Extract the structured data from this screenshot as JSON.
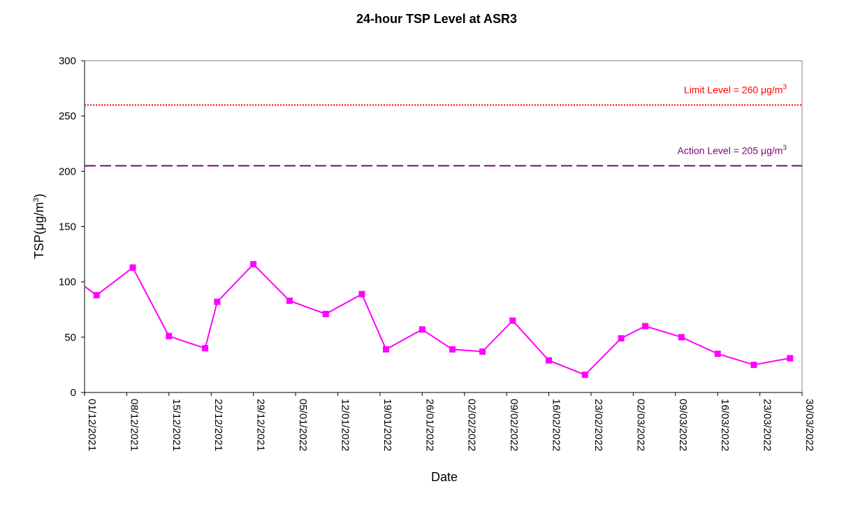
{
  "chart_data": {
    "type": "line",
    "title": "24-hour TSP Level at ASR3",
    "xlabel": "Date",
    "ylabel_main": "TSP(",
    "ylabel_unit": "μg/m",
    "ylabel_sup": "3",
    "ylabel_close": ")",
    "ylim": [
      0,
      300
    ],
    "yticks": [
      "0",
      "50",
      "100",
      "150",
      "200",
      "250",
      "300"
    ],
    "xlim": [
      "2021-12-01",
      "2022-03-30"
    ],
    "xticks": [
      "01/12/2021",
      "08/12/2021",
      "15/12/2021",
      "22/12/2021",
      "29/12/2021",
      "05/01/2022",
      "12/01/2022",
      "19/01/2022",
      "26/01/2022",
      "02/02/2022",
      "09/02/2022",
      "16/02/2022",
      "23/02/2022",
      "02/03/2022",
      "09/03/2022",
      "16/03/2022",
      "23/03/2022",
      "30/03/2022"
    ],
    "grid": false,
    "series": [
      {
        "color": "#ff00ff",
        "x": [
          "2021-12-01",
          "2021-12-03",
          "2021-12-09",
          "2021-12-15",
          "2021-12-21",
          "2021-12-23",
          "2021-12-29",
          "2022-01-04",
          "2022-01-10",
          "2022-01-16",
          "2022-01-20",
          "2022-01-26",
          "2022-01-31",
          "2022-02-05",
          "2022-02-10",
          "2022-02-16",
          "2022-02-22",
          "2022-02-28",
          "2022-03-04",
          "2022-03-10",
          "2022-03-16",
          "2022-03-22",
          "2022-03-28"
        ],
        "y": [
          96,
          88,
          113,
          51,
          40,
          82,
          116,
          83,
          71,
          89,
          39,
          57,
          39,
          37,
          65,
          29,
          16,
          49,
          60,
          50,
          35,
          25,
          31
        ]
      }
    ],
    "reference_lines": [
      {
        "value": 260,
        "color": "#ff0000",
        "style": "dotted",
        "label": "Limit Level = 260 ",
        "unit": "μg/m",
        "sup": "3"
      },
      {
        "value": 205,
        "color": "#800080",
        "style": "dashed",
        "label": "Action Level = 205 ",
        "unit": "μg/m",
        "sup": "3"
      }
    ]
  }
}
